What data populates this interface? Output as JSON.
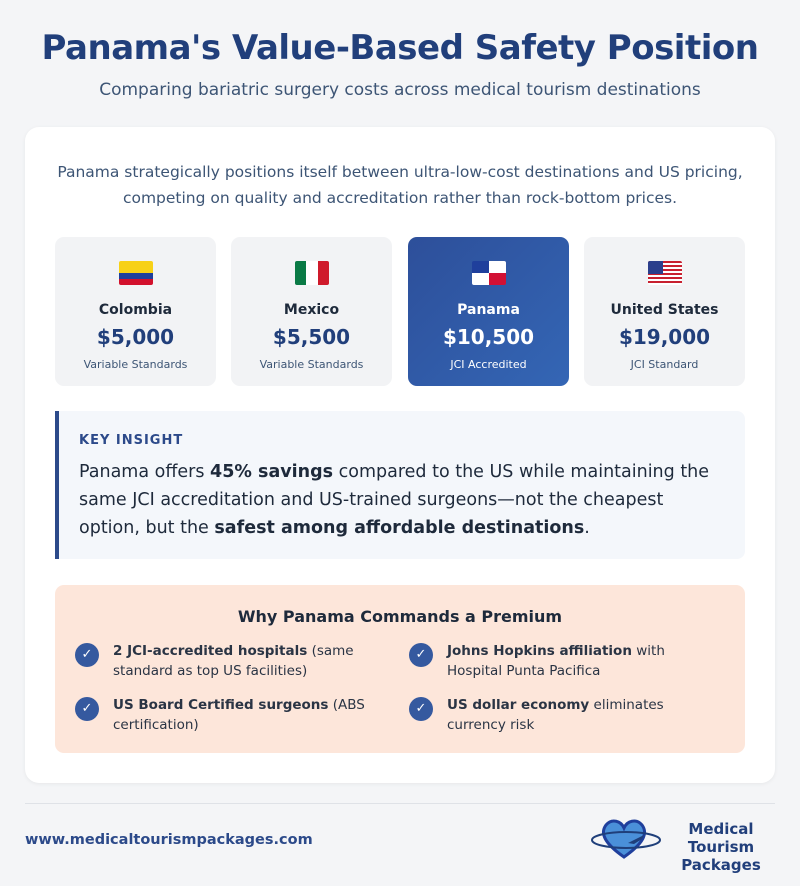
{
  "header": {
    "title": "Panama's Value-Based Safety Position",
    "subtitle": "Comparing bariatric surgery costs across medical tourism destinations"
  },
  "intro": "Panama strategically positions itself between ultra-low-cost destinations and US pricing, competing on quality and accreditation rather than rock-bottom prices.",
  "countries": [
    {
      "name": "Colombia",
      "price": "$5,000",
      "standard": "Variable Standards",
      "flag": "colombia-flag"
    },
    {
      "name": "Mexico",
      "price": "$5,500",
      "standard": "Variable Standards",
      "flag": "mexico-flag"
    },
    {
      "name": "Panama",
      "price": "$10,500",
      "standard": "JCI Accredited",
      "flag": "panama-flag",
      "highlighted": true
    },
    {
      "name": "United States",
      "price": "$19,000",
      "standard": "JCI Standard",
      "flag": "us-flag"
    }
  ],
  "insight": {
    "label": "KEY INSIGHT",
    "t1": "Panama offers ",
    "b1": "45% savings",
    "t2": " compared to the US while maintaining the same JCI accreditation and US-trained surgeons—not the cheapest option, but the ",
    "b2": "safest among affordable destinations",
    "t3": "."
  },
  "premium": {
    "title": "Why Panama Commands a Premium",
    "items": [
      {
        "bold": "2 JCI-accredited hospitals",
        "text": " (same standard as top US facilities)"
      },
      {
        "bold": "Johns Hopkins affiliation",
        "text": " with Hospital Punta Pacifica"
      },
      {
        "bold": "US Board Certified surgeons",
        "text": " (ABS certification)"
      },
      {
        "bold": "US dollar economy",
        "text": " eliminates currency risk"
      }
    ]
  },
  "footer": {
    "url": "www.medicaltourismpackages.com",
    "logo_line1": "Medical Tourism",
    "logo_line2": "Packages"
  },
  "colors": {
    "accent": "#213f7b",
    "highlight": "#2f5aa8",
    "premium_bg": "#fde6da"
  }
}
